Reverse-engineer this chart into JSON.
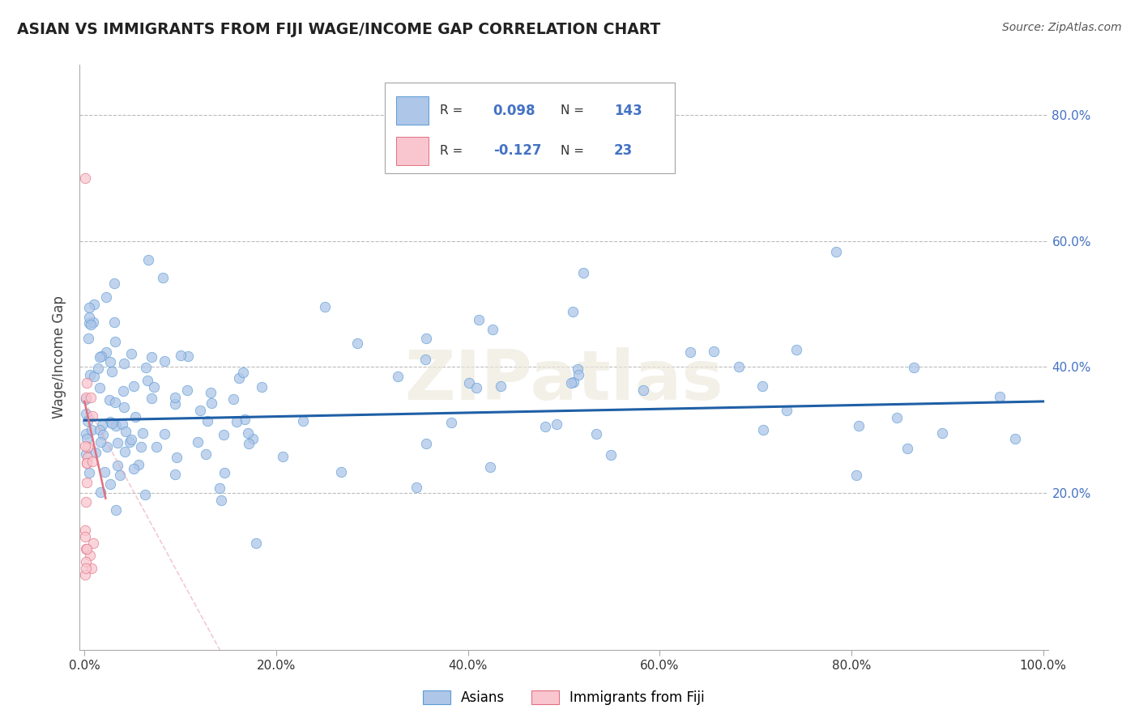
{
  "title": "ASIAN VS IMMIGRANTS FROM FIJI WAGE/INCOME GAP CORRELATION CHART",
  "source": "Source: ZipAtlas.com",
  "ylabel": "Wage/Income Gap",
  "xlim": [
    -0.005,
    1.005
  ],
  "ylim": [
    -5.0,
    88.0
  ],
  "xticks": [
    0.0,
    0.2,
    0.4,
    0.6,
    0.8,
    1.0
  ],
  "xtick_labels": [
    "0.0%",
    "20.0%",
    "40.0%",
    "60.0%",
    "80.0%",
    "100.0%"
  ],
  "ytick_vals": [
    20.0,
    40.0,
    60.0,
    80.0
  ],
  "ytick_labels": [
    "20.0%",
    "40.0%",
    "60.0%",
    "80.0%"
  ],
  "asian_color": "#AEC6E8",
  "asian_edge": "#5B9BD5",
  "fiji_color": "#F9C6CF",
  "fiji_edge": "#E07080",
  "trend_blue": "#1F5FA6",
  "trend_pink": "#E8A0AA",
  "watermark": "ZIPatlas",
  "bottom_legend1": "Asians",
  "bottom_legend2": "Immigrants from Fiji",
  "title_color": "#222222",
  "source_color": "#555555",
  "grid_color": "#BBBBBB",
  "axis_color": "#AAAAAA",
  "right_tick_color": "#4472C4",
  "legend_r1": "0.098",
  "legend_n1": "143",
  "legend_r2": "-0.127",
  "legend_n2": "23"
}
